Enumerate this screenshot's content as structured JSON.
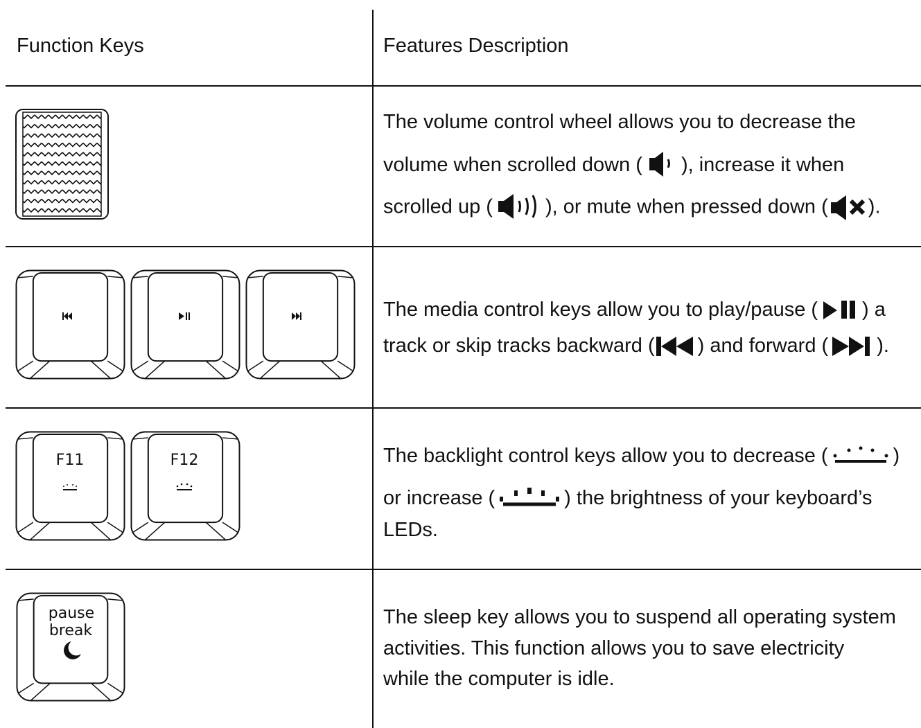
{
  "table": {
    "header": [
      "Function Keys",
      "Features Description"
    ],
    "rows": [
      {
        "description": [
          [
            "The volume control wheel allows you to decrease the"
          ],
          [
            "volume when scrolled down (",
            "), increase it when"
          ],
          [
            "scrolled up (",
            "), or mute when pressed down (",
            ")."
          ]
        ]
      },
      {
        "description": [
          [
            "The media control keys allow you to play/pause (",
            ") a"
          ],
          [
            "track or skip tracks backward (",
            ") and forward (",
            ")."
          ]
        ]
      },
      {
        "keys": [
          "F11",
          "F12"
        ],
        "description": [
          [
            "The backlight control keys allow you to decrease (",
            ")"
          ],
          [
            "or increase (",
            ") the brightness of your keyboard’s"
          ],
          [
            "LEDs."
          ]
        ]
      },
      {
        "keys": [
          "pause",
          "break"
        ],
        "description": [
          [
            "The sleep key allows you to suspend all operating system"
          ],
          [
            "activities. This function allows you to save electricity"
          ],
          [
            "while the computer is idle."
          ]
        ]
      }
    ]
  }
}
